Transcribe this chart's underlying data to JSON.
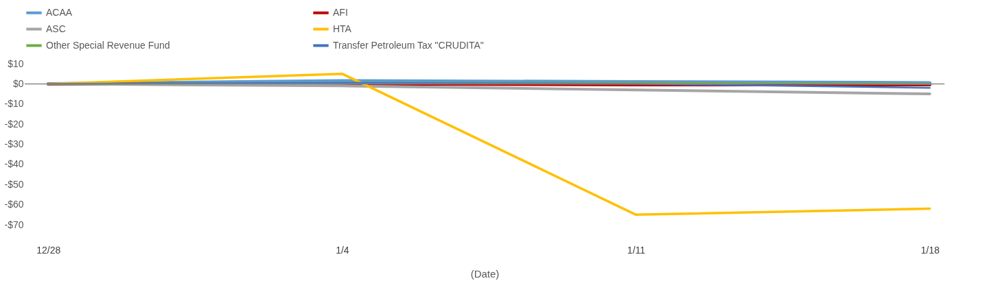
{
  "chart_data": {
    "type": "line",
    "xlabel": "(Date)",
    "categories": [
      "12/28",
      "1/4",
      "1/11",
      "1/18"
    ],
    "series": [
      {
        "name": "ACAA",
        "color": "#5b9bd5",
        "values": [
          0,
          1.5,
          1,
          0.5
        ]
      },
      {
        "name": "AFI",
        "color": "#c00000",
        "values": [
          0,
          0,
          -0.5,
          -0.5
        ]
      },
      {
        "name": "ASC",
        "color": "#a5a5a5",
        "values": [
          0,
          -1,
          -3,
          -5
        ]
      },
      {
        "name": "HTA",
        "color": "#ffc000",
        "values": [
          0,
          5,
          -65,
          -62
        ]
      },
      {
        "name": "Other Special Revenue Fund",
        "color": "#70ad47",
        "values": [
          0,
          0.5,
          0.5,
          0
        ]
      },
      {
        "name": "Transfer Petroleum Tax \"CRUDITA\"",
        "color": "#4472c4",
        "values": [
          0,
          0.5,
          0,
          -2
        ]
      }
    ],
    "ylim": [
      -70,
      10
    ],
    "yticks": [
      {
        "value": -70,
        "label": "-$70"
      },
      {
        "value": -60,
        "label": "-$60"
      },
      {
        "value": -50,
        "label": "-$50"
      },
      {
        "value": -40,
        "label": "-$40"
      },
      {
        "value": -30,
        "label": "-$30"
      },
      {
        "value": -20,
        "label": "-$20"
      },
      {
        "value": -10,
        "label": "-$10"
      },
      {
        "value": 0,
        "label": "$0"
      },
      {
        "value": 10,
        "label": "$10"
      }
    ],
    "ref_lines": [
      {
        "axis": "y",
        "value": 0,
        "color": "#888888"
      }
    ],
    "grid": false,
    "legend": "top",
    "marker": "none",
    "line_style": "solid"
  }
}
